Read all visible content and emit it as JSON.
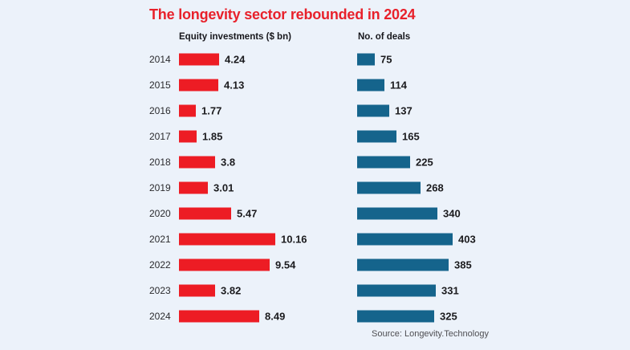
{
  "title": "The longevity sector rebounded in 2024",
  "source": "Source: Longevity.Technology",
  "colors": {
    "background": "#ecf2fa",
    "title_red": "#e8212b",
    "bar_red": "#ed1c24",
    "bar_blue": "#15648c",
    "text_dark": "#1b1b1e",
    "source_gray": "#4e4e52"
  },
  "chart_data": {
    "type": "bar",
    "orientation": "horizontal",
    "title": "The longevity sector rebounded in 2024",
    "categories": [
      "2014",
      "2015",
      "2016",
      "2017",
      "2018",
      "2019",
      "2020",
      "2021",
      "2022",
      "2023",
      "2024"
    ],
    "series": [
      {
        "name": "Equity investments ($ bn)",
        "values": [
          4.24,
          4.13,
          1.77,
          1.85,
          3.8,
          3.01,
          5.47,
          10.16,
          9.54,
          3.82,
          8.49
        ],
        "color": "#ed1c24"
      },
      {
        "name": "No. of deals",
        "values": [
          75,
          114,
          137,
          165,
          225,
          268,
          340,
          403,
          385,
          331,
          325
        ],
        "color": "#15648c"
      }
    ],
    "grid": false,
    "legend_position": "column-headers",
    "value_labels": "at-bar-end"
  }
}
